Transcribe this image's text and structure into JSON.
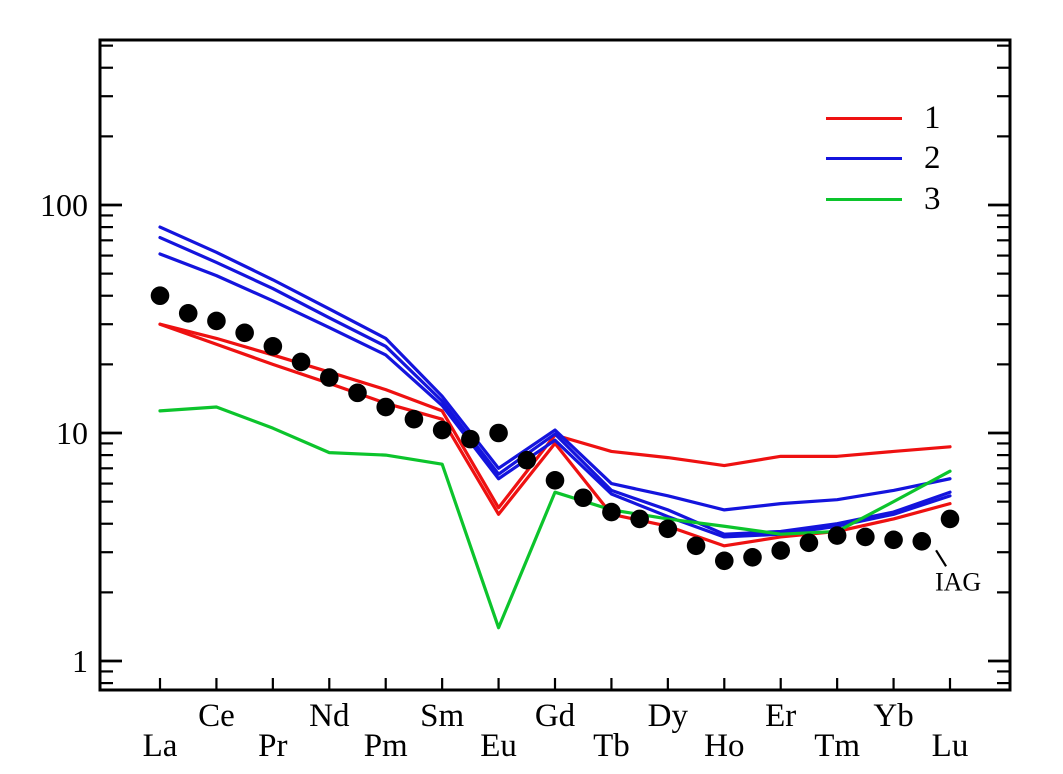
{
  "chart_data": {
    "type": "line",
    "title": "",
    "xlabel": "",
    "ylabel": "",
    "x_categories": [
      "La",
      "Ce",
      "Pr",
      "Nd",
      "Pm",
      "Sm",
      "Eu",
      "Gd",
      "Tb",
      "Dy",
      "Ho",
      "Er",
      "Tm",
      "Yb",
      "Lu"
    ],
    "y_axis": {
      "scale": "log",
      "tick_values": [
        100,
        10,
        1
      ],
      "tick_labels": [
        "100",
        "10",
        "1"
      ],
      "range": [
        0.75,
        530
      ],
      "minor_ticks": [
        0.8,
        0.9,
        2,
        3,
        4,
        5,
        6,
        7,
        8,
        9,
        20,
        30,
        40,
        50,
        60,
        70,
        80,
        90,
        200,
        300,
        400,
        500
      ]
    },
    "grid": false,
    "legend": {
      "position": "top-right",
      "entries": [
        {
          "label": "1",
          "color": "#ee1111"
        },
        {
          "label": "2",
          "color": "#1414dd"
        },
        {
          "label": "3",
          "color": "#0cc42c"
        }
      ]
    },
    "series": [
      {
        "name": "red-upper",
        "group": "1",
        "color": "#ee1111",
        "values": [
          30,
          26,
          22,
          18.5,
          15.5,
          12.5,
          4.7,
          9.8,
          8.3,
          7.8,
          7.2,
          7.9,
          7.9,
          8.3,
          8.7
        ]
      },
      {
        "name": "red-lower",
        "group": "1",
        "color": "#ee1111",
        "values": [
          30,
          24.5,
          20,
          16.5,
          13.5,
          11.5,
          4.4,
          9.0,
          4.4,
          3.9,
          3.2,
          3.5,
          3.7,
          4.2,
          4.9
        ]
      },
      {
        "name": "blue-upper",
        "group": "2",
        "color": "#1414dd",
        "values": [
          80,
          62,
          47,
          35,
          26,
          14.5,
          7.0,
          10.3,
          6.0,
          5.3,
          4.6,
          4.9,
          5.1,
          5.6,
          6.3
        ]
      },
      {
        "name": "blue-middle",
        "group": "2",
        "color": "#1414dd",
        "values": [
          72,
          56,
          43,
          32,
          24,
          13.8,
          6.6,
          9.9,
          5.6,
          4.6,
          3.6,
          3.7,
          4.0,
          4.5,
          5.5
        ]
      },
      {
        "name": "blue-lower",
        "group": "2",
        "color": "#1414dd",
        "values": [
          61,
          49,
          38,
          29,
          22,
          13.2,
          6.3,
          9.3,
          5.4,
          4.3,
          3.5,
          3.6,
          3.9,
          4.4,
          5.3
        ]
      },
      {
        "name": "green",
        "group": "3",
        "color": "#0cc42c",
        "values": [
          12.5,
          13,
          10.5,
          8.2,
          8.0,
          7.3,
          1.4,
          5.5,
          4.6,
          4.2,
          3.9,
          3.6,
          3.7,
          5.0,
          6.8
        ]
      }
    ],
    "scatter": {
      "name": "IAG",
      "color": "#000000",
      "marker": "circle",
      "points": [
        [
          0,
          40
        ],
        [
          0.5,
          33.5
        ],
        [
          1,
          31
        ],
        [
          1.5,
          27.5
        ],
        [
          2,
          24
        ],
        [
          2.5,
          20.5
        ],
        [
          3,
          17.5
        ],
        [
          3.5,
          15
        ],
        [
          4,
          13
        ],
        [
          4.5,
          11.5
        ],
        [
          5,
          10.3
        ],
        [
          5.5,
          9.4
        ],
        [
          6,
          10
        ],
        [
          6.5,
          7.6
        ],
        [
          7,
          6.2
        ],
        [
          7.5,
          5.2
        ],
        [
          8,
          4.5
        ],
        [
          8.5,
          4.2
        ],
        [
          9,
          3.8
        ],
        [
          9.5,
          3.2
        ],
        [
          10,
          2.75
        ],
        [
          10.5,
          2.85
        ],
        [
          11,
          3.05
        ],
        [
          11.5,
          3.3
        ],
        [
          12,
          3.55
        ],
        [
          12.5,
          3.5
        ],
        [
          13,
          3.4
        ],
        [
          13.5,
          3.35
        ],
        [
          14,
          4.2
        ]
      ]
    },
    "annotation": {
      "text": "IAG",
      "target_x": 13.7,
      "target_value": 3.35
    }
  }
}
